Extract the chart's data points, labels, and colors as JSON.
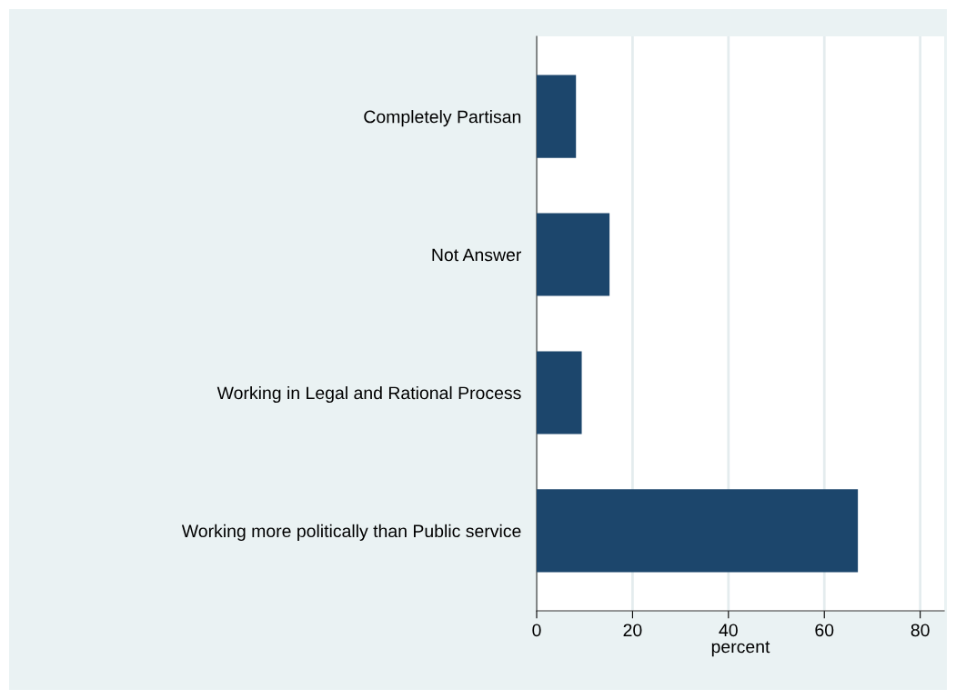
{
  "chart_data": {
    "type": "bar",
    "orientation": "horizontal",
    "xlabel": "percent",
    "categories": [
      "Completely Partisan",
      "Not Answer",
      "Working in Legal and Rational Process",
      "Working more politically than Public service"
    ],
    "values": [
      8.2,
      15.2,
      9.4,
      67.0
    ],
    "color": "#1c466c",
    "xlim": [
      0,
      85
    ],
    "xticks": [
      0,
      20,
      40,
      60,
      80
    ],
    "grid": "x"
  }
}
